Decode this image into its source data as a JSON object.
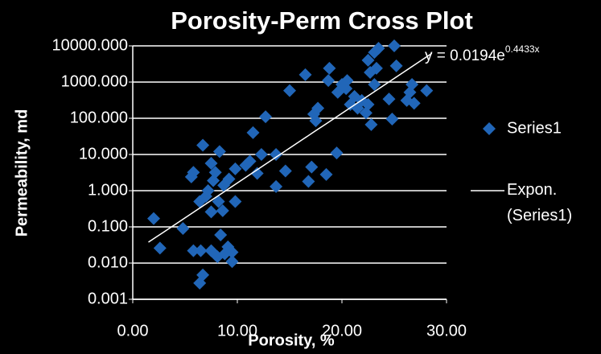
{
  "chart_data": {
    "type": "scatter",
    "title": "Porosity-Perm Cross Plot",
    "xlabel": "Porosity, %",
    "ylabel": "Permeability, md",
    "log_y": true,
    "grid": true,
    "xlim": [
      0,
      30
    ],
    "ylim": [
      0.001,
      10000
    ],
    "xticks": [
      {
        "value": 0,
        "label": "0.00"
      },
      {
        "value": 10,
        "label": "10.00"
      },
      {
        "value": 20,
        "label": "20.00"
      },
      {
        "value": 30,
        "label": "30.00"
      }
    ],
    "yticks": [
      {
        "value": 0.001,
        "label": "0.001"
      },
      {
        "value": 0.01,
        "label": "0.010"
      },
      {
        "value": 0.1,
        "label": "0.100"
      },
      {
        "value": 1,
        "label": "1.000"
      },
      {
        "value": 10,
        "label": "10.000"
      },
      {
        "value": 100,
        "label": "100.000"
      },
      {
        "value": 1000,
        "label": "1000.000"
      },
      {
        "value": 10000,
        "label": "10000.000"
      }
    ],
    "series": [
      {
        "name": "Series1",
        "color": "#2166b8",
        "x": [
          2.0,
          2.6,
          4.8,
          5.6,
          5.8,
          5.8,
          6.4,
          6.5,
          6.7,
          6.7,
          6.4,
          7.0,
          7.2,
          7.5,
          7.5,
          7.7,
          7.5,
          7.9,
          8.2,
          8.3,
          8.4,
          8.1,
          8.6,
          8.7,
          8.8,
          9.1,
          9.2,
          9.5,
          9.5,
          9.8,
          9.8,
          10.8,
          11.2,
          11.5,
          11.9,
          12.3,
          12.7,
          13.7,
          13.7,
          14.6,
          15.0,
          16.5,
          16.8,
          17.1,
          17.3,
          17.5,
          17.7,
          18.5,
          18.7,
          18.8,
          19.5,
          19.6,
          20.0,
          20.4,
          20.5,
          20.8,
          21.2,
          21.5,
          21.9,
          22.3,
          22.5,
          22.7,
          22.5,
          22.8,
          23.1,
          23.1,
          23.3,
          23.5,
          24.5,
          24.8,
          25.0,
          25.2,
          26.2,
          26.5,
          26.7,
          26.9,
          28.1
        ],
        "values": [
          0.17,
          0.026,
          0.09,
          2.4,
          3.2,
          0.022,
          0.0028,
          0.022,
          0.0047,
          18,
          0.5,
          0.7,
          1.0,
          5.7,
          0.26,
          1.9,
          0.022,
          3.2,
          0.5,
          12,
          0.06,
          0.015,
          0.28,
          1.4,
          0.018,
          0.028,
          2.1,
          0.011,
          0.02,
          4,
          0.5,
          5,
          6.5,
          40,
          3,
          10,
          110,
          10,
          1.3,
          3.5,
          580,
          1600,
          1.8,
          4.5,
          130,
          85,
          190,
          2.8,
          1100,
          2400,
          11,
          520,
          860,
          660,
          1100,
          240,
          400,
          190,
          310,
          140,
          4000,
          1850,
          240,
          67,
          860,
          6600,
          2400,
          8600,
          340,
          95,
          10000,
          2800,
          310,
          520,
          860,
          260,
          580
        ]
      }
    ],
    "trendline": {
      "name": "Expon. (Series1)",
      "color": "#ffffff",
      "a": 0.0194,
      "b": 0.4433,
      "equation": "y = 0.0194e",
      "exponent": "0.4433x"
    }
  }
}
